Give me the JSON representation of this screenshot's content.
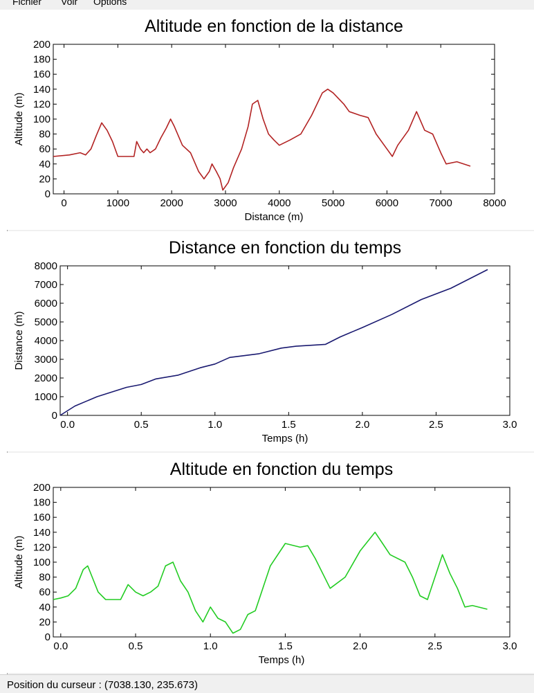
{
  "menu": {
    "items": [
      "Fichier",
      "Voir",
      "Options"
    ]
  },
  "status": {
    "text": "Position du curseur : (7038.130, 235.673)"
  },
  "chart_data": [
    {
      "type": "line",
      "title": "Altitude en fonction de la distance",
      "xlabel": "Distance (m)",
      "ylabel": "Altitude (m)",
      "xlim": [
        -200,
        8000
      ],
      "ylim": [
        0,
        200
      ],
      "xticks": [
        0,
        1000,
        2000,
        3000,
        4000,
        5000,
        6000,
        7000,
        8000
      ],
      "yticks": [
        0,
        20,
        40,
        60,
        80,
        100,
        120,
        140,
        160,
        180,
        200
      ],
      "xtick_labels": [
        "0",
        "1000",
        "2000",
        "3000",
        "4000",
        "5000",
        "6000",
        "7000",
        "8000"
      ],
      "ytick_labels": [
        "0",
        "20",
        "40",
        "60",
        "80",
        "100",
        "120",
        "140",
        "160",
        "180",
        "200"
      ],
      "color": "#b22222",
      "grid": false,
      "series": [
        {
          "x": [
            -200,
            100,
            300,
            400,
            500,
            600,
            700,
            800,
            900,
            1000,
            1300,
            1350,
            1420,
            1480,
            1540,
            1600,
            1700,
            1800,
            1900,
            1980,
            2050,
            2200,
            2350,
            2500,
            2600,
            2700,
            2750,
            2830,
            2900,
            2950,
            3050,
            3150,
            3300,
            3420,
            3500,
            3600,
            3700,
            3800,
            3900,
            4000,
            4200,
            4400,
            4600,
            4800,
            4900,
            5000,
            5200,
            5300,
            5500,
            5650,
            5800,
            6000,
            6100,
            6200,
            6400,
            6550,
            6700,
            6850,
            7000,
            7100,
            7300,
            7550
          ],
          "y": [
            50,
            52,
            55,
            52,
            60,
            78,
            95,
            85,
            70,
            50,
            50,
            70,
            60,
            55,
            60,
            55,
            60,
            75,
            88,
            100,
            90,
            65,
            55,
            30,
            20,
            30,
            40,
            30,
            20,
            5,
            15,
            35,
            60,
            90,
            120,
            125,
            100,
            80,
            72,
            65,
            72,
            80,
            105,
            135,
            140,
            135,
            120,
            110,
            105,
            102,
            80,
            60,
            50,
            65,
            85,
            110,
            85,
            80,
            55,
            40,
            43,
            37
          ]
        }
      ]
    },
    {
      "type": "line",
      "title": "Distance en fonction du temps",
      "xlabel": "Temps (h)",
      "ylabel": "Distance (m)",
      "xlim": [
        -0.05,
        3.0
      ],
      "ylim": [
        0,
        8000
      ],
      "xticks": [
        0.0,
        0.5,
        1.0,
        1.5,
        2.0,
        2.5,
        3.0
      ],
      "yticks": [
        0,
        1000,
        2000,
        3000,
        4000,
        5000,
        6000,
        7000,
        8000
      ],
      "xtick_labels": [
        "0.0",
        "0.5",
        "1.0",
        "1.5",
        "2.0",
        "2.5",
        "3.0"
      ],
      "ytick_labels": [
        "0",
        "1000",
        "2000",
        "3000",
        "4000",
        "5000",
        "6000",
        "7000",
        "8000"
      ],
      "color": "#191970",
      "grid": false,
      "series": [
        {
          "x": [
            -0.05,
            0.05,
            0.2,
            0.4,
            0.5,
            0.6,
            0.75,
            0.9,
            1.0,
            1.1,
            1.3,
            1.45,
            1.55,
            1.75,
            1.85,
            2.0,
            2.2,
            2.4,
            2.6,
            2.85
          ],
          "y": [
            0,
            500,
            1000,
            1500,
            1650,
            1950,
            2150,
            2550,
            2750,
            3100,
            3300,
            3600,
            3700,
            3800,
            4200,
            4700,
            5400,
            6200,
            6800,
            7800
          ]
        }
      ]
    },
    {
      "type": "line",
      "title": "Altitude en fonction du temps",
      "xlabel": "Temps (h)",
      "ylabel": "Altitude (m)",
      "xlim": [
        -0.05,
        3.0
      ],
      "ylim": [
        0,
        200
      ],
      "xticks": [
        0.0,
        0.5,
        1.0,
        1.5,
        2.0,
        2.5,
        3.0
      ],
      "yticks": [
        0,
        20,
        40,
        60,
        80,
        100,
        120,
        140,
        160,
        180,
        200
      ],
      "xtick_labels": [
        "0.0",
        "0.5",
        "1.0",
        "1.5",
        "2.0",
        "2.5",
        "3.0"
      ],
      "ytick_labels": [
        "0",
        "20",
        "40",
        "60",
        "80",
        "100",
        "120",
        "140",
        "160",
        "180",
        "200"
      ],
      "color": "#22cc22",
      "grid": false,
      "series": [
        {
          "x": [
            -0.05,
            0.0,
            0.05,
            0.1,
            0.15,
            0.18,
            0.25,
            0.3,
            0.4,
            0.45,
            0.5,
            0.55,
            0.6,
            0.65,
            0.7,
            0.75,
            0.8,
            0.85,
            0.9,
            0.95,
            1.0,
            1.05,
            1.1,
            1.15,
            1.2,
            1.25,
            1.3,
            1.4,
            1.5,
            1.6,
            1.65,
            1.7,
            1.8,
            1.9,
            2.0,
            2.1,
            2.15,
            2.2,
            2.3,
            2.35,
            2.4,
            2.45,
            2.5,
            2.55,
            2.6,
            2.65,
            2.7,
            2.75,
            2.85
          ],
          "y": [
            50,
            52,
            55,
            65,
            90,
            95,
            60,
            50,
            50,
            70,
            60,
            55,
            60,
            68,
            95,
            100,
            75,
            60,
            35,
            20,
            40,
            25,
            20,
            5,
            10,
            30,
            35,
            95,
            125,
            120,
            122,
            105,
            65,
            80,
            115,
            140,
            125,
            110,
            100,
            80,
            55,
            50,
            80,
            110,
            85,
            65,
            40,
            42,
            37
          ]
        }
      ]
    }
  ]
}
